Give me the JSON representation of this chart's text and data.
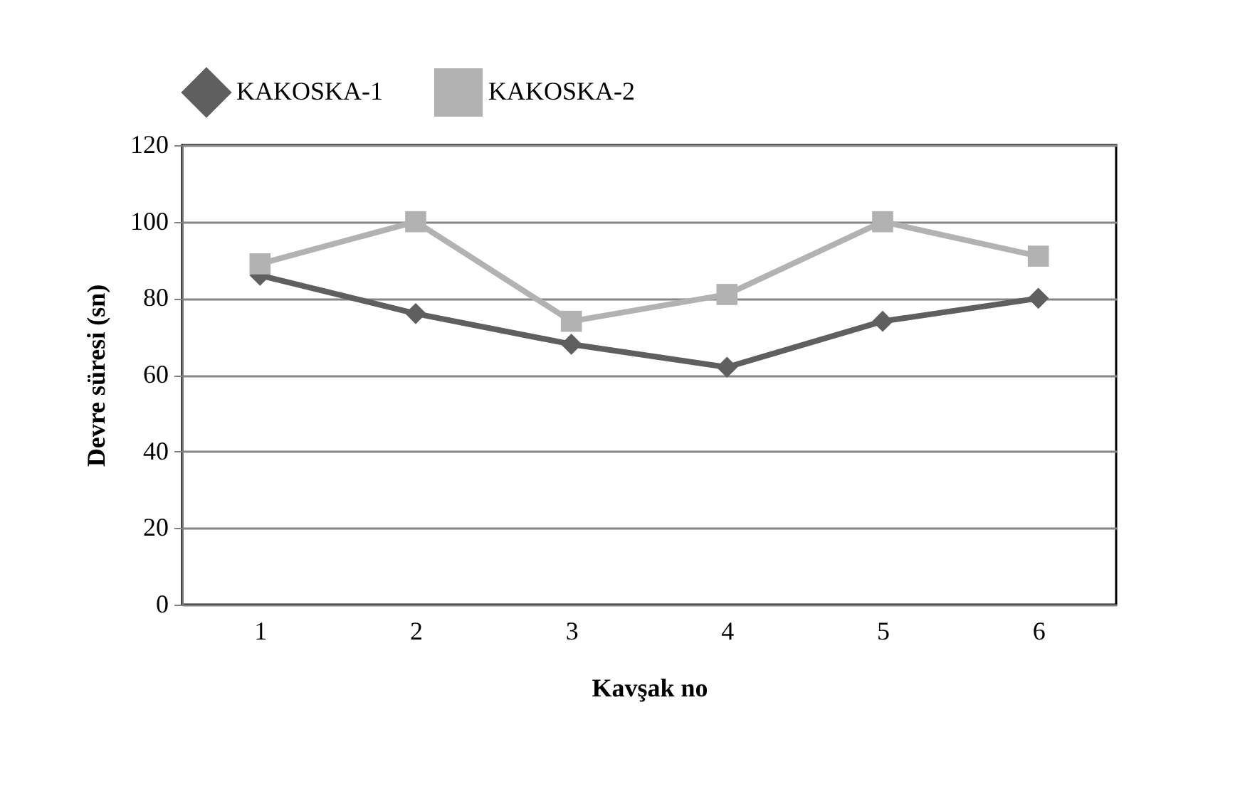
{
  "chart_data": {
    "type": "line",
    "xlabel": "Kavşak no",
    "ylabel": "Devre süresi  (sn)",
    "categories": [
      "1",
      "2",
      "3",
      "4",
      "5",
      "6"
    ],
    "series": [
      {
        "name": "KAKOSKA-1",
        "color": "#5f5f5f",
        "marker": "diamond",
        "values": [
          86,
          76,
          68,
          62,
          74,
          80
        ]
      },
      {
        "name": "KAKOSKA-2",
        "color": "#b2b2b2",
        "marker": "square",
        "values": [
          89,
          100,
          74,
          81,
          100,
          91
        ]
      }
    ],
    "ylim": [
      0,
      120
    ],
    "yticks": [
      0,
      20,
      40,
      60,
      80,
      100,
      120
    ],
    "grid": "y",
    "legend": "top"
  }
}
